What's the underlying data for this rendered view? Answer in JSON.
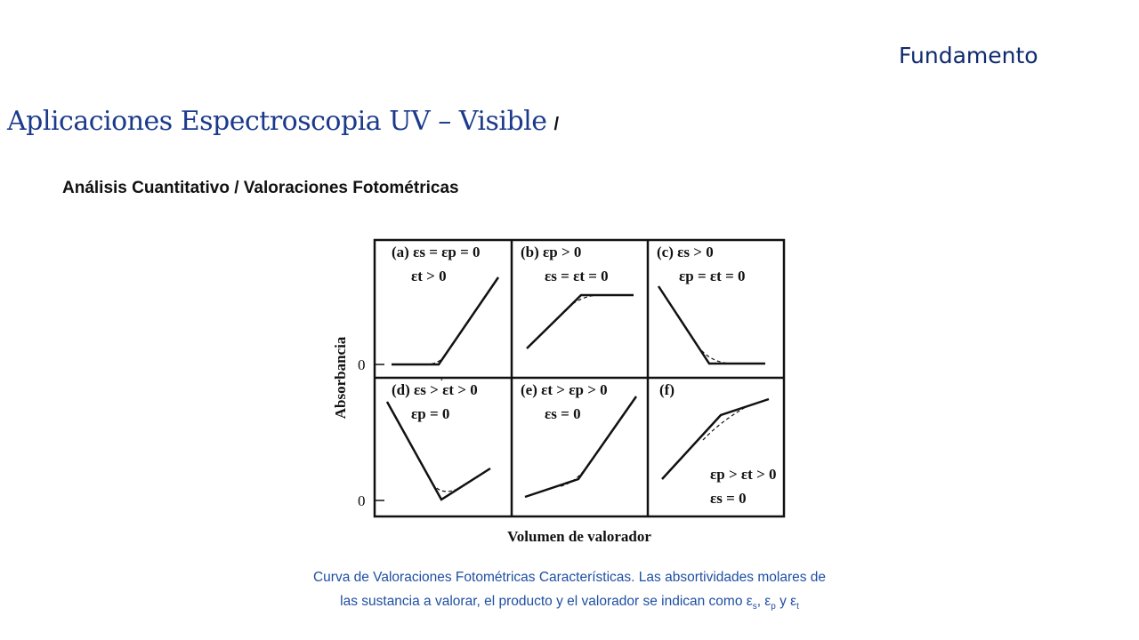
{
  "header": {
    "topic": "Fundamento",
    "title": "Aplicaciones Espectroscopia UV – Visible",
    "title_separator": "/",
    "subtitle": "Análisis Cuantitativo / Valoraciones Fotométricas"
  },
  "figure": {
    "y_axis_label": "Absorbancia",
    "x_axis_label": "Volumen de valorador",
    "zero_labels": [
      "0",
      "0"
    ],
    "panels": [
      {
        "id": "a",
        "label": "(a)",
        "cond1": "εs = εp = 0",
        "cond2": "εt > 0"
      },
      {
        "id": "b",
        "label": "(b)",
        "cond1": "εp > 0",
        "cond2": "εs = εt = 0"
      },
      {
        "id": "c",
        "label": "(c)",
        "cond1": "εs > 0",
        "cond2": "εp = εt = 0"
      },
      {
        "id": "d",
        "label": "(d)",
        "cond1": "εs > εt > 0",
        "cond2": "εp = 0"
      },
      {
        "id": "e",
        "label": "(e)",
        "cond1": "εt > εp > 0",
        "cond2": "εs = 0"
      },
      {
        "id": "f",
        "label": "(f)",
        "cond1": "εp > εt > 0",
        "cond2": "εs = 0"
      }
    ]
  },
  "caption": {
    "line1": "Curva de Valoraciones Fotométricas Características. Las absortividades molares de",
    "line2_text": "las sustancia a valorar, el producto y el valorador se indican como ε",
    "sub_s": "s",
    "sep1": ", ε",
    "sub_p": "p",
    "sep2": " y ε",
    "sub_t": "t"
  }
}
